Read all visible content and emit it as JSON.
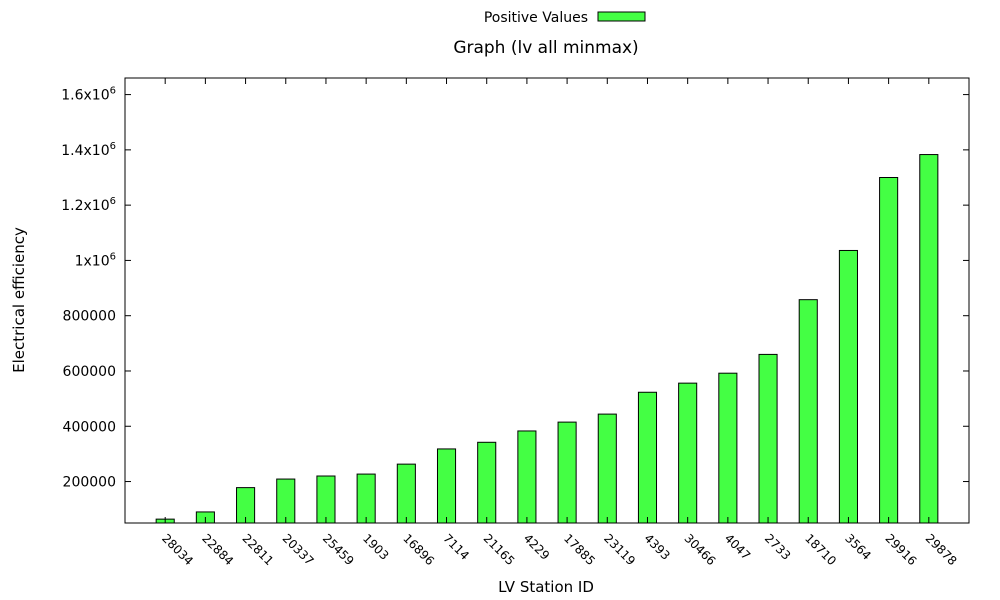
{
  "chart_data": {
    "type": "bar",
    "title": "Graph (lv all minmax)",
    "xlabel": "LV Station ID",
    "ylabel": "Electrical efficiency",
    "legend": {
      "label": "Positive Values",
      "placement": "top-center"
    },
    "bar_color": "#44ff44",
    "ylim": [
      50000,
      1660000
    ],
    "yticks": [
      {
        "value": 200000,
        "label": "200000"
      },
      {
        "value": 400000,
        "label": "400000"
      },
      {
        "value": 600000,
        "label": "600000"
      },
      {
        "value": 800000,
        "label": "800000"
      },
      {
        "value": 1000000,
        "label": "1x10",
        "exp": "6"
      },
      {
        "value": 1200000,
        "label": "1.2x10",
        "exp": "6"
      },
      {
        "value": 1400000,
        "label": "1.4x10",
        "exp": "6"
      },
      {
        "value": 1600000,
        "label": "1.6x10",
        "exp": "6"
      }
    ],
    "categories": [
      "28034",
      "22884",
      "22811",
      "20337",
      "25459",
      "1903",
      "16896",
      "7114",
      "21165",
      "4229",
      "17885",
      "23119",
      "4393",
      "30466",
      "4047",
      "2733",
      "18710",
      "3564",
      "29916",
      "29878"
    ],
    "series": [
      {
        "name": "Positive Values",
        "values": [
          64000,
          90000,
          178000,
          209000,
          220000,
          227000,
          263000,
          318000,
          342000,
          383000,
          415000,
          444000,
          523000,
          556000,
          592000,
          660000,
          858000,
          1036000,
          1300000,
          1383000
        ]
      }
    ],
    "grid": false
  }
}
